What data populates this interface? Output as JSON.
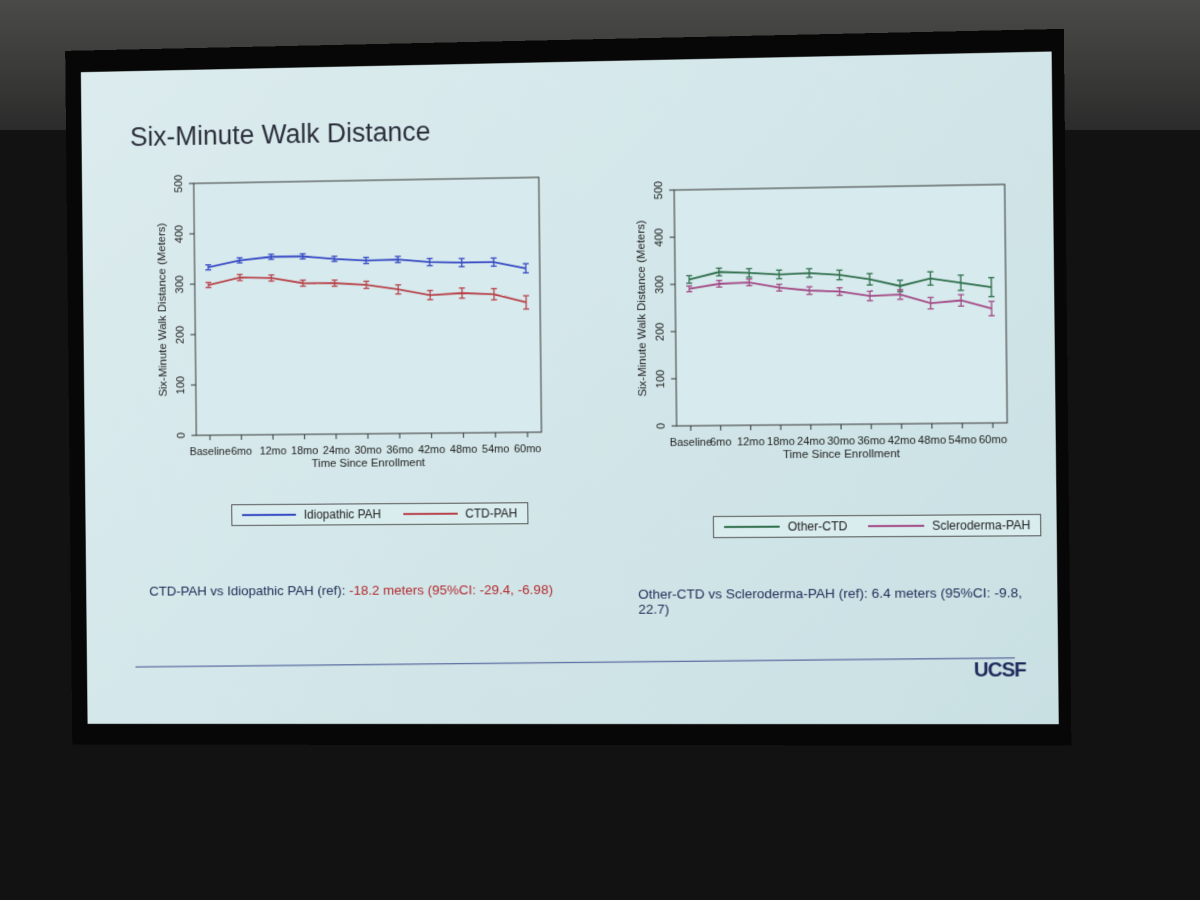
{
  "slide": {
    "title": "Six-Minute Walk Distance",
    "logo": "UCSF",
    "stat_left": {
      "prefix": "CTD-PAH vs Idiopathic PAH (ref): ",
      "value": "-18.2 meters (95%CI: -29.4, -6.98)"
    },
    "stat_right": {
      "text": "Other-CTD vs Scleroderma-PAH (ref): 6.4 meters (95%CI: -9.8, 22.7)"
    }
  },
  "colors": {
    "blue": "#3347c4",
    "red": "#b8424a",
    "green": "#2f6f4c",
    "magenta": "#a34a86"
  },
  "chart_data": [
    {
      "type": "line",
      "title": "",
      "xlabel": "Time Since Enrollment",
      "ylabel": "Six-Minute Walk Distance (Meters)",
      "ylim": [
        0,
        500
      ],
      "yticks": [
        0,
        100,
        200,
        300,
        400,
        500
      ],
      "categories": [
        "Baseline",
        "6mo",
        "12mo",
        "18mo",
        "24mo",
        "30mo",
        "36mo",
        "42mo",
        "48mo",
        "54mo",
        "60mo"
      ],
      "series": [
        {
          "name": "Idiopathic PAH",
          "color": "#3347c4",
          "values": [
            333,
            346,
            352,
            352,
            346,
            342,
            343,
            337,
            335,
            335,
            322
          ],
          "ci": [
            5,
            5,
            5,
            5,
            5,
            6,
            6,
            7,
            8,
            8,
            9
          ]
        },
        {
          "name": "CTD-PAH",
          "color": "#b8424a",
          "values": [
            298,
            312,
            310,
            299,
            298,
            294,
            284,
            272,
            275,
            272,
            255
          ],
          "ci": [
            5,
            6,
            6,
            6,
            6,
            7,
            9,
            9,
            10,
            11,
            13
          ]
        }
      ],
      "legend": [
        "Idiopathic PAH",
        "CTD-PAH"
      ]
    },
    {
      "type": "line",
      "title": "",
      "xlabel": "Time Since Enrollment",
      "ylabel": "Six-Minute Walk Distance (Meters)",
      "ylim": [
        0,
        500
      ],
      "yticks": [
        0,
        100,
        200,
        300,
        400,
        500
      ],
      "categories": [
        "Baseline",
        "6mo",
        "12mo",
        "18mo",
        "24mo",
        "30mo",
        "36mo",
        "42mo",
        "48mo",
        "54mo",
        "60mo"
      ],
      "series": [
        {
          "name": "Other-CTD",
          "color": "#2f6f4c",
          "values": [
            310,
            325,
            322,
            318,
            320,
            315,
            305,
            290,
            305,
            295,
            285
          ],
          "ci": [
            8,
            8,
            9,
            9,
            9,
            10,
            12,
            12,
            14,
            16,
            20
          ]
        },
        {
          "name": "Scleroderma-PAH",
          "color": "#a34a86",
          "values": [
            290,
            300,
            302,
            290,
            283,
            280,
            270,
            272,
            253,
            258,
            240
          ],
          "ci": [
            6,
            7,
            7,
            7,
            8,
            8,
            10,
            10,
            12,
            12,
            15
          ]
        }
      ],
      "legend": [
        "Other-CTD",
        "Scleroderma-PAH"
      ]
    }
  ]
}
